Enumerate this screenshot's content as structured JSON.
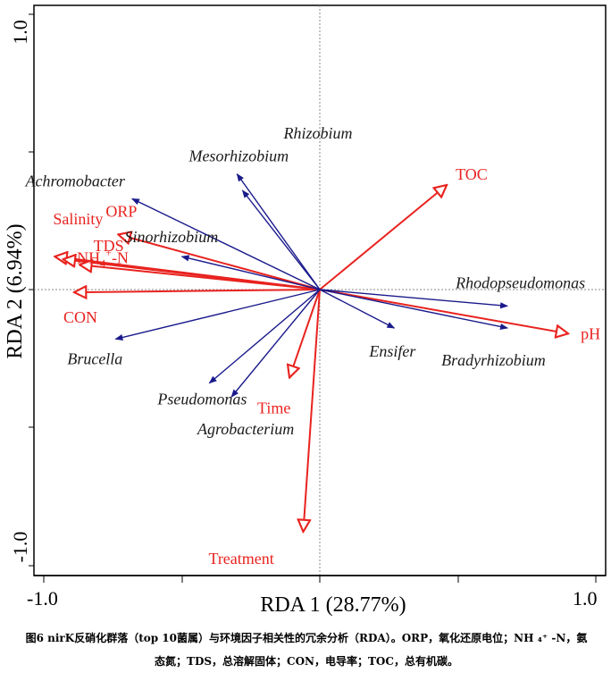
{
  "chart_data": {
    "type": "scatter",
    "subtype": "rda-biplot",
    "xlabel": "RDA 1 (28.77%)",
    "ylabel": "RDA 2 (6.94%)",
    "xlim": [
      -1.0,
      1.0
    ],
    "ylim": [
      -1.0,
      1.0
    ],
    "x_tick_labels": [
      "-1.0",
      "1.0"
    ],
    "y_tick_labels": [
      "-1.0",
      "1.0"
    ],
    "colors": {
      "species": "#1a1a8c",
      "environment": "#e8231f",
      "reference_lines": "#888888"
    },
    "species": [
      {
        "name": "Achromobacter",
        "x": -0.68,
        "y": 0.33
      },
      {
        "name": "Mesorhizobium",
        "x": -0.3,
        "y": 0.42
      },
      {
        "name": "Rhizobium",
        "x": -0.28,
        "y": 0.36
      },
      {
        "name": "Sinorhizobium",
        "x": -0.5,
        "y": 0.12
      },
      {
        "name": "Rhodopseudomonas",
        "x": 0.68,
        "y": -0.06
      },
      {
        "name": "Bradyrhizobium",
        "x": 0.68,
        "y": -0.14
      },
      {
        "name": "Ensifer",
        "x": 0.27,
        "y": -0.14
      },
      {
        "name": "Brucella",
        "x": -0.74,
        "y": -0.18
      },
      {
        "name": "Pseudomonas",
        "x": -0.4,
        "y": -0.34
      },
      {
        "name": "Agrobacterium",
        "x": -0.32,
        "y": -0.39
      }
    ],
    "environment": [
      {
        "name": "TOC",
        "x": 0.46,
        "y": 0.38
      },
      {
        "name": "pH",
        "x": 0.9,
        "y": -0.16
      },
      {
        "name": "Salinity",
        "x": -0.96,
        "y": 0.12
      },
      {
        "name": "TDS",
        "x": -0.93,
        "y": 0.11
      },
      {
        "name": "ORP",
        "x": -0.73,
        "y": 0.2
      },
      {
        "name": "NH4+-N",
        "x": -0.87,
        "y": 0.09
      },
      {
        "name": "CON",
        "x": -0.89,
        "y": -0.01
      },
      {
        "name": "Time",
        "x": -0.11,
        "y": -0.32
      },
      {
        "name": "Treatment",
        "x": -0.06,
        "y": -0.88
      }
    ]
  },
  "caption": {
    "line1": "图6 nirK反硝化群落（top 10菌属）与环境因子相关性的冗余分析（RDA）。ORP，氧化还原电位；NH ₄⁺ -N，氨",
    "line2": "态氮；TDS，总溶解固体；CON，电导率；TOC，总有机碳。"
  }
}
